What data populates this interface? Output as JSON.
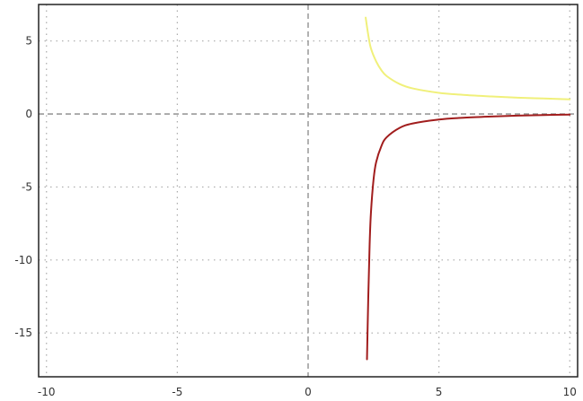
{
  "chart_data": {
    "type": "line",
    "title": "",
    "xlabel": "",
    "ylabel": "",
    "xlim": [
      -10.3,
      10.3
    ],
    "ylim": [
      -18,
      7.5
    ],
    "grid": true,
    "grid_style": "dotted",
    "zero_axes_style": "dashed",
    "x_ticks": [
      -10,
      -5,
      0,
      5,
      10
    ],
    "x_tick_labels": [
      "-10",
      "-5",
      "0",
      "5",
      "10"
    ],
    "y_ticks": [
      5,
      0,
      -5,
      -10,
      -15
    ],
    "y_tick_labels": [
      "5",
      "0",
      "-5",
      "-10",
      "-15"
    ],
    "series": [
      {
        "color": "#f0f07a",
        "points": [
          [
            2.2,
            6.6
          ],
          [
            2.3,
            5.4
          ],
          [
            2.4,
            4.5
          ],
          [
            2.6,
            3.6
          ],
          [
            2.8,
            3.0
          ],
          [
            3.0,
            2.6
          ],
          [
            3.5,
            2.05
          ],
          [
            4.0,
            1.75
          ],
          [
            5.0,
            1.45
          ],
          [
            6.0,
            1.3
          ],
          [
            7.0,
            1.2
          ],
          [
            8.0,
            1.12
          ],
          [
            9.0,
            1.06
          ],
          [
            10.0,
            1.0
          ]
        ]
      },
      {
        "color": "#a11d1d",
        "points": [
          [
            2.25,
            -16.8
          ],
          [
            2.3,
            -12.5
          ],
          [
            2.35,
            -9.0
          ],
          [
            2.4,
            -6.8
          ],
          [
            2.5,
            -4.5
          ],
          [
            2.6,
            -3.3
          ],
          [
            2.8,
            -2.2
          ],
          [
            3.0,
            -1.6
          ],
          [
            3.5,
            -0.95
          ],
          [
            4.0,
            -0.65
          ],
          [
            5.0,
            -0.38
          ],
          [
            6.0,
            -0.25
          ],
          [
            7.0,
            -0.17
          ],
          [
            8.0,
            -0.11
          ],
          [
            9.0,
            -0.07
          ],
          [
            10.0,
            -0.04
          ]
        ]
      }
    ]
  },
  "colors": {
    "frame": "#222222",
    "grid": "#aaaaaa",
    "zero_axes": "#888888"
  }
}
